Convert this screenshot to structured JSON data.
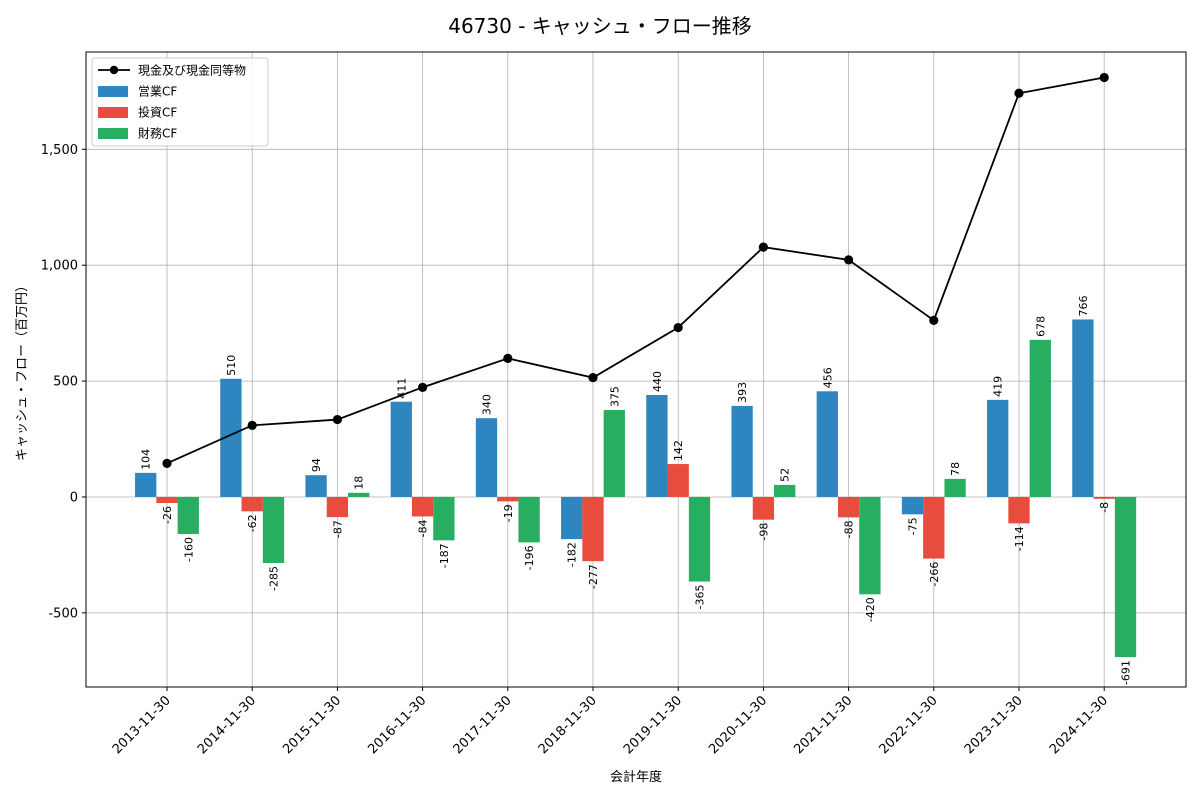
{
  "chart_data": {
    "type": "bar",
    "title": "46730 - キャッシュ・フロー推移",
    "xlabel": "会計年度",
    "ylabel": "キャッシュ・フロー（百万円）",
    "ylim": [
      -820,
      1920
    ],
    "yticks": [
      -500,
      0,
      500,
      1000,
      1500
    ],
    "ytick_labels": [
      "-500",
      "0",
      "500",
      "1,000",
      "1,500"
    ],
    "grid": true,
    "legend_position": "top-left",
    "categories": [
      "2013-11-30",
      "2014-11-30",
      "2015-11-30",
      "2016-11-30",
      "2017-11-30",
      "2018-11-30",
      "2019-11-30",
      "2020-11-30",
      "2021-11-30",
      "2022-11-30",
      "2023-11-30",
      "2024-11-30"
    ],
    "series": [
      {
        "name": "営業CF",
        "type": "bar",
        "color": "#2e86c1",
        "values": [
          104,
          510,
          94,
          411,
          340,
          -182,
          440,
          393,
          456,
          -75,
          419,
          766
        ],
        "labels": [
          "104",
          "510",
          "94",
          "411",
          "340",
          "-182",
          "440",
          "393",
          "456",
          "-75",
          "419",
          "766"
        ]
      },
      {
        "name": "投資CF",
        "type": "bar",
        "color": "#e74c3c",
        "values": [
          -26,
          -62,
          -87,
          -84,
          -19,
          -277,
          142,
          -98,
          -88,
          -266,
          -114,
          -8
        ],
        "labels": [
          "-26",
          "-62",
          "-87",
          "-84",
          "-19",
          "-277",
          "142",
          "-98",
          "-88",
          "-266",
          "-114",
          "-8"
        ]
      },
      {
        "name": "財務CF",
        "type": "bar",
        "color": "#27ae60",
        "values": [
          -160,
          -285,
          18,
          -187,
          -196,
          375,
          -365,
          52,
          -420,
          78,
          678,
          -691
        ],
        "labels": [
          "-160",
          "-285",
          "18",
          "-187",
          "-196",
          "375",
          "-365",
          "52",
          "-420",
          "78",
          "678",
          "-691"
        ]
      },
      {
        "name": "現金及び現金同等物",
        "type": "line",
        "color": "#000000",
        "values": [
          145,
          309,
          334,
          473,
          598,
          515,
          731,
          1078,
          1023,
          762,
          1742,
          1810
        ]
      }
    ]
  }
}
